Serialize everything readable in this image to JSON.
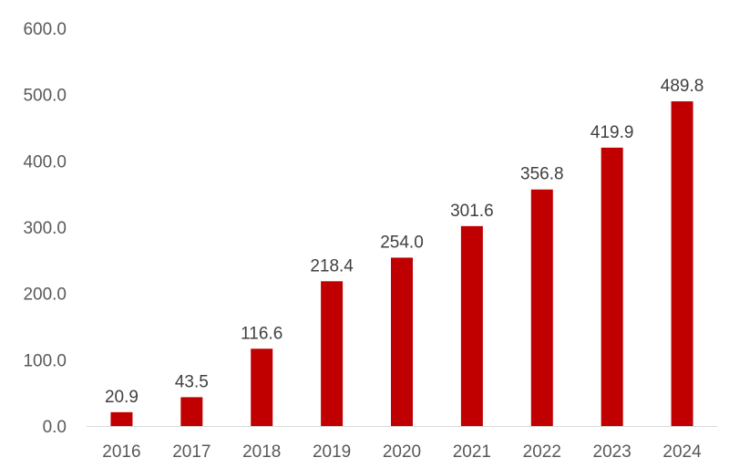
{
  "chart_data": {
    "type": "bar",
    "title": "",
    "xlabel": "",
    "ylabel": "",
    "categories": [
      "2016",
      "2017",
      "2018",
      "2019",
      "2020",
      "2021",
      "2022",
      "2023",
      "2024"
    ],
    "values": [
      20.9,
      43.5,
      116.6,
      218.4,
      254.0,
      301.6,
      356.8,
      419.9,
      489.8
    ],
    "value_labels": [
      "20.9",
      "43.5",
      "116.6",
      "218.4",
      "254.0",
      "301.6",
      "356.8",
      "419.9",
      "489.8"
    ],
    "ylim": [
      0,
      600
    ],
    "y_ticks": [
      0,
      100,
      200,
      300,
      400,
      500,
      600
    ],
    "y_tick_labels": [
      "0.0",
      "100.0",
      "200.0",
      "300.0",
      "400.0",
      "500.0",
      "600.0"
    ],
    "grid": false,
    "legend": "none",
    "bar_color": "#c00000"
  }
}
